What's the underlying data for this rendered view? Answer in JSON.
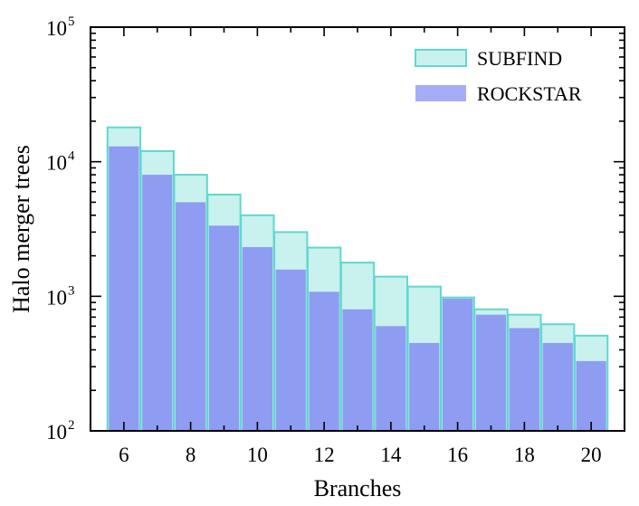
{
  "chart_data": {
    "type": "bar",
    "xlabel": "Branches",
    "ylabel": "Halo merger trees",
    "yscale": "log",
    "ylim": [
      100,
      100000
    ],
    "xlim": [
      5,
      21
    ],
    "grid": false,
    "legend_position": "top-right",
    "x": [
      6,
      7,
      8,
      9,
      10,
      11,
      12,
      13,
      14,
      15,
      16,
      17,
      18,
      19,
      20
    ],
    "xticks": [
      6,
      8,
      10,
      12,
      14,
      16,
      18,
      20
    ],
    "yticks": [
      {
        "value": 100,
        "base": "10",
        "exp": "2"
      },
      {
        "value": 1000,
        "base": "10",
        "exp": "3"
      },
      {
        "value": 10000,
        "base": "10",
        "exp": "4"
      },
      {
        "value": 100000,
        "base": "10",
        "exp": "5"
      }
    ],
    "series": [
      {
        "name": "SUBFIND",
        "fill": "#c9f1ee",
        "stroke": "#5fd8cf",
        "values": [
          18000,
          12000,
          8000,
          5700,
          4000,
          3000,
          2300,
          1780,
          1400,
          1180,
          980,
          800,
          730,
          620,
          510
        ]
      },
      {
        "name": "ROCKSTAR",
        "fill": "#8e9cf2",
        "stroke": "none",
        "values": [
          13000,
          8000,
          5000,
          3350,
          2320,
          1580,
          1080,
          800,
          600,
          450,
          960,
          730,
          580,
          450,
          330
        ]
      }
    ]
  }
}
